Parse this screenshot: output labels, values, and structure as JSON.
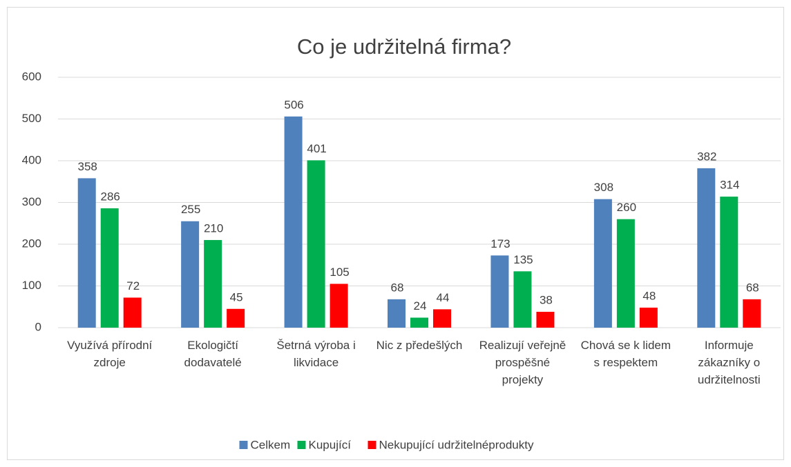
{
  "chart_data": {
    "type": "bar",
    "title": "Co je udržitelná firma?",
    "categories": [
      "Využívá přírodní zdroje",
      "Ekologičtí dodavatelé",
      "Šetrná výroba i likvidace",
      "Nic z předešlých",
      "Realizují veřejně prospěšné projekty",
      "Chová se k lidem s respektem",
      "Informuje zákazníky o udržitelnosti"
    ],
    "series": [
      {
        "name": "Celkem",
        "color": "#4f81bd",
        "values": [
          358,
          255,
          506,
          68,
          173,
          308,
          382
        ]
      },
      {
        "name": "Kupující",
        "color": "#00b050",
        "values": [
          286,
          210,
          401,
          24,
          135,
          260,
          314
        ]
      },
      {
        "name": "Nekupující udržitelnéprodukty",
        "color": "#ff0000",
        "values": [
          72,
          45,
          105,
          44,
          38,
          48,
          68
        ]
      }
    ],
    "ylim": [
      0,
      600
    ],
    "yticks": [
      0,
      100,
      200,
      300,
      400,
      500,
      600
    ],
    "grid": true,
    "legend": "bottom"
  }
}
